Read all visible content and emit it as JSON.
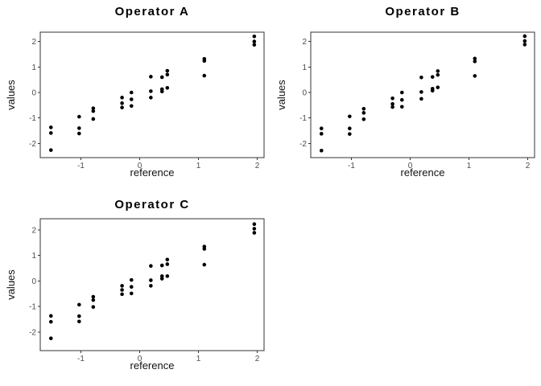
{
  "figure": {
    "background": "#ffffff",
    "point_color": "#000000",
    "panel_border_color": "#333333",
    "tick_color": "#333333",
    "tick_label_color": "#4d4d4d",
    "title_color": "#000000",
    "axis_title_color": "#111111"
  },
  "chart_data": [
    {
      "type": "scatter",
      "title": "Operator A",
      "xlabel": "reference",
      "ylabel": "values",
      "xticks": [
        -1,
        0,
        1,
        2
      ],
      "yticks": [
        2,
        1,
        0,
        -1,
        -2
      ],
      "xlim": [
        -1.69,
        2.12
      ],
      "ylim": [
        -2.56,
        2.37
      ],
      "grid": false,
      "legend": "none",
      "points": [
        {
          "x": -1.51,
          "y": [
            -1.37,
            -1.59,
            -2.26
          ]
        },
        {
          "x": -1.03,
          "y": [
            -0.95,
            -1.4,
            -1.61
          ]
        },
        {
          "x": -0.79,
          "y": [
            -0.62,
            -0.73,
            -1.04
          ]
        },
        {
          "x": -0.3,
          "y": [
            -0.2,
            -0.42,
            -0.59
          ]
        },
        {
          "x": -0.14,
          "y": [
            0.0,
            -0.27,
            -0.53
          ]
        },
        {
          "x": 0.19,
          "y": [
            0.62,
            0.05,
            -0.2
          ]
        },
        {
          "x": 0.38,
          "y": [
            0.6,
            0.13,
            0.04
          ]
        },
        {
          "x": 0.47,
          "y": [
            0.85,
            0.7,
            0.18
          ]
        },
        {
          "x": 1.1,
          "y": [
            1.32,
            1.24,
            0.66
          ]
        },
        {
          "x": 1.95,
          "y": [
            2.2,
            2.0,
            1.87
          ]
        }
      ]
    },
    {
      "type": "scatter",
      "title": "Operator B",
      "xlabel": "reference",
      "ylabel": "values",
      "xticks": [
        -1,
        0,
        1,
        2
      ],
      "yticks": [
        2,
        1,
        0,
        -1,
        -2
      ],
      "xlim": [
        -1.69,
        2.12
      ],
      "ylim": [
        -2.56,
        2.37
      ],
      "grid": false,
      "legend": "none",
      "points": [
        {
          "x": -1.51,
          "y": [
            -1.41,
            -1.62,
            -2.28
          ]
        },
        {
          "x": -1.03,
          "y": [
            -0.94,
            -1.41,
            -1.63
          ]
        },
        {
          "x": -0.79,
          "y": [
            -0.64,
            -0.8,
            -1.05
          ]
        },
        {
          "x": -0.3,
          "y": [
            -0.23,
            -0.45,
            -0.57
          ]
        },
        {
          "x": -0.14,
          "y": [
            0.0,
            -0.29,
            -0.56
          ]
        },
        {
          "x": 0.19,
          "y": [
            0.59,
            0.02,
            -0.25
          ]
        },
        {
          "x": 0.38,
          "y": [
            0.61,
            0.15,
            0.07
          ]
        },
        {
          "x": 0.47,
          "y": [
            0.84,
            0.69,
            0.2
          ]
        },
        {
          "x": 1.1,
          "y": [
            1.33,
            1.22,
            0.65
          ]
        },
        {
          "x": 1.95,
          "y": [
            2.21,
            2.02,
            1.88
          ]
        }
      ]
    },
    {
      "type": "scatter",
      "title": "Operator C",
      "xlabel": "reference",
      "ylabel": "values",
      "xticks": [
        -1,
        0,
        1,
        2
      ],
      "yticks": [
        2,
        1,
        0,
        -1,
        -2
      ],
      "xlim": [
        -1.69,
        2.12
      ],
      "ylim": [
        -2.73,
        2.43
      ],
      "grid": false,
      "legend": "none",
      "points": [
        {
          "x": -1.51,
          "y": [
            -1.37,
            -1.6,
            -2.25
          ]
        },
        {
          "x": -1.03,
          "y": [
            -0.93,
            -1.38,
            -1.59
          ]
        },
        {
          "x": -0.79,
          "y": [
            -0.62,
            -0.75,
            -1.02
          ]
        },
        {
          "x": -0.3,
          "y": [
            -0.19,
            -0.35,
            -0.52
          ]
        },
        {
          "x": -0.14,
          "y": [
            0.04,
            -0.23,
            -0.49
          ]
        },
        {
          "x": 0.19,
          "y": [
            0.59,
            0.03,
            -0.19
          ]
        },
        {
          "x": 0.38,
          "y": [
            0.61,
            0.19,
            0.09
          ]
        },
        {
          "x": 0.47,
          "y": [
            0.84,
            0.66,
            0.19
          ]
        },
        {
          "x": 1.1,
          "y": [
            1.35,
            1.26,
            0.64
          ]
        },
        {
          "x": 1.95,
          "y": [
            2.23,
            2.05,
            1.89
          ]
        }
      ]
    }
  ]
}
